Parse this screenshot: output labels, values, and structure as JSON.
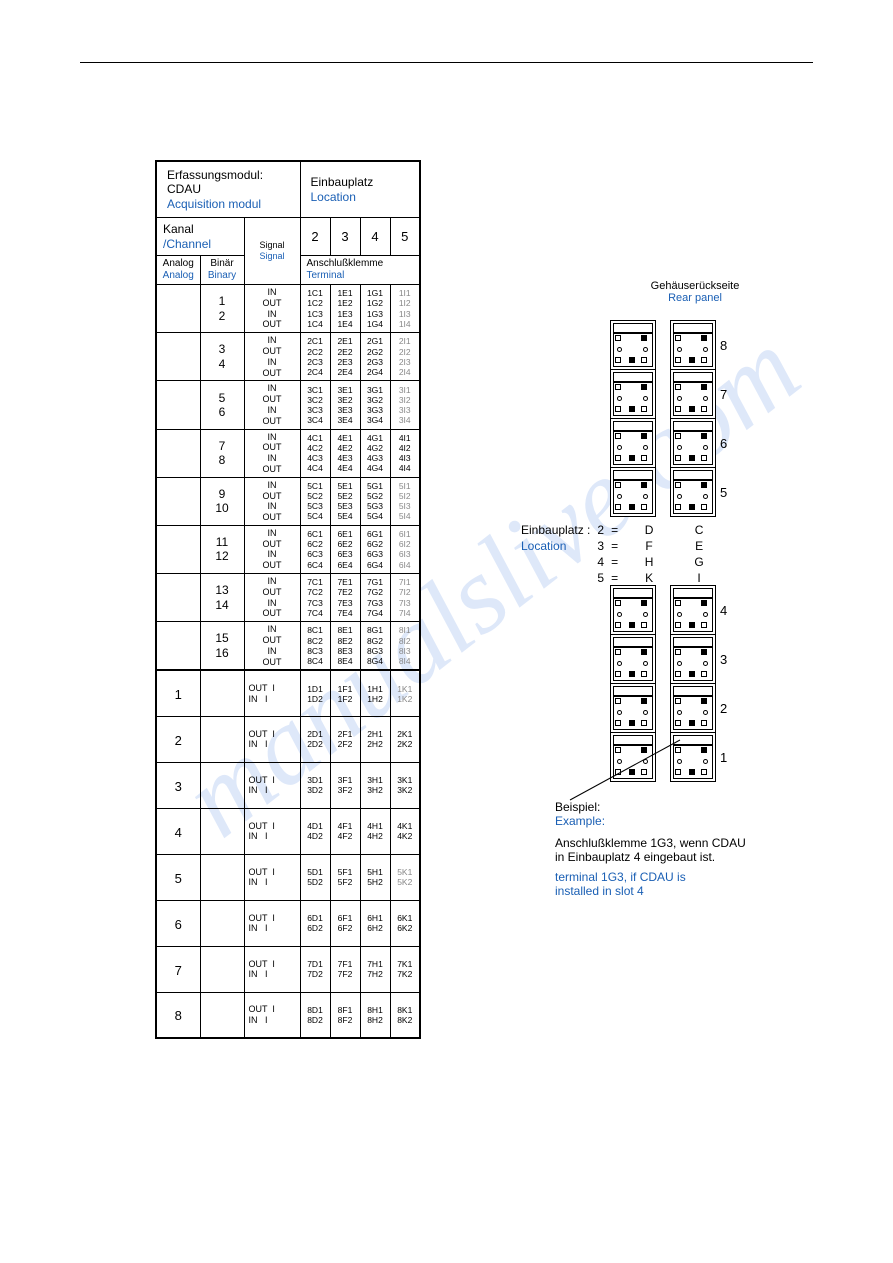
{
  "header": {
    "title_de": "Erfassungsmodul: CDAU",
    "title_en": "Acquisition modul",
    "loc_de": "Einbauplatz",
    "loc_en": "Location",
    "kanal_de": "Kanal",
    "kanal_en": "/Channel",
    "analog_de": "Analog",
    "analog_en": "Analog",
    "binary_de": "Binär",
    "binary_en": "Binary",
    "signal_de": "Signal",
    "signal_en": "Signal",
    "terminal_de": "Anschlußklemme",
    "terminal_en": "Terminal",
    "cols": [
      "2",
      "3",
      "4",
      "5"
    ]
  },
  "binary_pairs": [
    {
      "ch": [
        "1",
        "2"
      ],
      "sig": [
        "IN",
        "OUT",
        "IN",
        "OUT"
      ],
      "t": [
        [
          "1C1",
          "1E1",
          "1G1",
          "1I1"
        ],
        [
          "1C2",
          "1E2",
          "1G2",
          "1I2"
        ],
        [
          "1C3",
          "1E3",
          "1G3",
          "1I3"
        ],
        [
          "1C4",
          "1E4",
          "1G4",
          "1I4"
        ]
      ],
      "gray5": true
    },
    {
      "ch": [
        "3",
        "4"
      ],
      "sig": [
        "IN",
        "OUT",
        "IN",
        "OUT"
      ],
      "t": [
        [
          "2C1",
          "2E1",
          "2G1",
          "2I1"
        ],
        [
          "2C2",
          "2E2",
          "2G2",
          "2I2"
        ],
        [
          "2C3",
          "2E3",
          "2G3",
          "2I3"
        ],
        [
          "2C4",
          "2E4",
          "2G4",
          "2I4"
        ]
      ],
      "gray5": true
    },
    {
      "ch": [
        "5",
        "6"
      ],
      "sig": [
        "IN",
        "OUT",
        "IN",
        "OUT"
      ],
      "t": [
        [
          "3C1",
          "3E1",
          "3G1",
          "3I1"
        ],
        [
          "3C2",
          "3E2",
          "3G2",
          "3I2"
        ],
        [
          "3C3",
          "3E3",
          "3G3",
          "3I3"
        ],
        [
          "3C4",
          "3E4",
          "3G4",
          "3I4"
        ]
      ],
      "gray5": true
    },
    {
      "ch": [
        "7",
        "8"
      ],
      "sig": [
        "IN",
        "OUT",
        "IN",
        "OUT"
      ],
      "t": [
        [
          "4C1",
          "4E1",
          "4G1",
          "4I1"
        ],
        [
          "4C2",
          "4E2",
          "4G2",
          "4I2"
        ],
        [
          "4C3",
          "4E3",
          "4G3",
          "4I3"
        ],
        [
          "4C4",
          "4E4",
          "4G4",
          "4I4"
        ]
      ],
      "gray5": false
    },
    {
      "ch": [
        "9",
        "10"
      ],
      "sig": [
        "IN",
        "OUT",
        "IN",
        "OUT"
      ],
      "t": [
        [
          "5C1",
          "5E1",
          "5G1",
          "5I1"
        ],
        [
          "5C2",
          "5E2",
          "5G2",
          "5I2"
        ],
        [
          "5C3",
          "5E3",
          "5G3",
          "5I3"
        ],
        [
          "5C4",
          "5E4",
          "5G4",
          "5I4"
        ]
      ],
      "gray5": true
    },
    {
      "ch": [
        "11",
        "12"
      ],
      "sig": [
        "IN",
        "OUT",
        "IN",
        "OUT"
      ],
      "t": [
        [
          "6C1",
          "6E1",
          "6G1",
          "6I1"
        ],
        [
          "6C2",
          "6E2",
          "6G2",
          "6I2"
        ],
        [
          "6C3",
          "6E3",
          "6G3",
          "6I3"
        ],
        [
          "6C4",
          "6E4",
          "6G4",
          "6I4"
        ]
      ],
      "gray5": true
    },
    {
      "ch": [
        "13",
        "14"
      ],
      "sig": [
        "IN",
        "OUT",
        "IN",
        "OUT"
      ],
      "t": [
        [
          "7C1",
          "7E1",
          "7G1",
          "7I1"
        ],
        [
          "7C2",
          "7E2",
          "7G2",
          "7I2"
        ],
        [
          "7C3",
          "7E3",
          "7G3",
          "7I3"
        ],
        [
          "7C4",
          "7E4",
          "7G4",
          "7I4"
        ]
      ],
      "gray5": true
    },
    {
      "ch": [
        "15",
        "16"
      ],
      "sig": [
        "IN",
        "OUT",
        "IN",
        "OUT"
      ],
      "t": [
        [
          "8C1",
          "8E1",
          "8G1",
          "8I1"
        ],
        [
          "8C2",
          "8E2",
          "8G2",
          "8I2"
        ],
        [
          "8C3",
          "8E3",
          "8G3",
          "8I3"
        ],
        [
          "8C4",
          "8E4",
          "8G4",
          "8I4"
        ]
      ],
      "gray5": true
    }
  ],
  "analog_rows": [
    {
      "ch": "1",
      "sig": [
        "OUT  I",
        "IN   I"
      ],
      "t": [
        [
          "1D1",
          "1F1",
          "1H1",
          "1K1"
        ],
        [
          "1D2",
          "1F2",
          "1H2",
          "1K2"
        ]
      ],
      "gray5": true
    },
    {
      "ch": "2",
      "sig": [
        "OUT  I",
        "IN   I"
      ],
      "t": [
        [
          "2D1",
          "2F1",
          "2H1",
          "2K1"
        ],
        [
          "2D2",
          "2F2",
          "2H2",
          "2K2"
        ]
      ],
      "gray5": false
    },
    {
      "ch": "3",
      "sig": [
        "OUT  I",
        "IN   I"
      ],
      "t": [
        [
          "3D1",
          "3F1",
          "3H1",
          "3K1"
        ],
        [
          "3D2",
          "3F2",
          "3H2",
          "3K2"
        ]
      ],
      "gray5": false
    },
    {
      "ch": "4",
      "sig": [
        "OUT  I",
        "IN   I"
      ],
      "t": [
        [
          "4D1",
          "4F1",
          "4H1",
          "4K1"
        ],
        [
          "4D2",
          "4F2",
          "4H2",
          "4K2"
        ]
      ],
      "gray5": false
    },
    {
      "ch": "5",
      "sig": [
        "OUT  I",
        "IN   I"
      ],
      "t": [
        [
          "5D1",
          "5F1",
          "5H1",
          "5K1"
        ],
        [
          "5D2",
          "5F2",
          "5H2",
          "5K2"
        ]
      ],
      "gray5": true
    },
    {
      "ch": "6",
      "sig": [
        "OUT  I",
        "IN   I"
      ],
      "t": [
        [
          "6D1",
          "6F1",
          "6H1",
          "6K1"
        ],
        [
          "6D2",
          "6F2",
          "6H2",
          "6K2"
        ]
      ],
      "gray5": false
    },
    {
      "ch": "7",
      "sig": [
        "OUT  I",
        "IN   I"
      ],
      "t": [
        [
          "7D1",
          "7F1",
          "7H1",
          "7K1"
        ],
        [
          "7D2",
          "7F2",
          "7H2",
          "7K2"
        ]
      ],
      "gray5": false
    },
    {
      "ch": "8",
      "sig": [
        "OUT  I",
        "IN   I"
      ],
      "t": [
        [
          "8D1",
          "8F1",
          "8H1",
          "8K1"
        ],
        [
          "8D2",
          "8F2",
          "8H2",
          "8K2"
        ]
      ],
      "gray5": false
    }
  ],
  "rear": {
    "label_de": "Gehäuserückseite",
    "label_en": "Rear panel",
    "top_nums": [
      "8",
      "7",
      "6",
      "5"
    ],
    "bot_nums": [
      "4",
      "3",
      "2",
      "1"
    ]
  },
  "loc_map": {
    "label_de": "Einbauplatz :",
    "label_en": "Location",
    "rows": [
      {
        "n": "2",
        "l": "D",
        "r": "C"
      },
      {
        "n": "3",
        "l": "F",
        "r": "E"
      },
      {
        "n": "4",
        "l": "H",
        "r": "G"
      },
      {
        "n": "5",
        "l": "K",
        "r": "I"
      }
    ]
  },
  "example": {
    "label_de": "Beispiel:",
    "label_en": "Example:",
    "text_de1": "Anschlußklemme 1G3, wenn CDAU",
    "text_de2": "in Einbauplatz 4 eingebaut ist.",
    "text_en1": "terminal 1G3, if CDAU is",
    "text_en2": "installed in slot 4"
  }
}
